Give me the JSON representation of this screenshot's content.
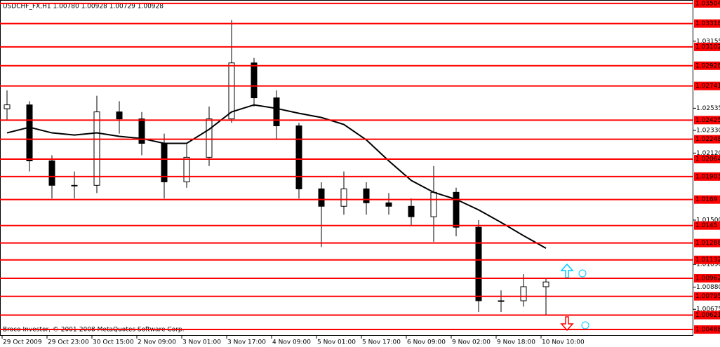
{
  "chart_data": {
    "type": "candlestick",
    "title": "USDCHF_FX,H1  1.00780 1.00928 1.00729 1.00928",
    "annotation": "Broco Investor, © 2001-2008 MetaQuotes Software Corp.",
    "x_labels": [
      "29 Oct 2009",
      "29 Oct 23:00",
      "30 Oct 15:00",
      "2 Nov 09:00",
      "3 Nov 01:00",
      "3 Nov 17:00",
      "4 Nov 09:00",
      "5 Nov 01:00",
      "5 Nov 17:00",
      "6 Nov 09:00",
      "9 Nov 02:00",
      "9 Nov 18:00",
      "10 Nov 10:00"
    ],
    "open": [
      1.0253,
      1.02566,
      1.02048,
      1.01822,
      1.01822,
      1.02501,
      1.02436,
      1.0221,
      1.01854,
      1.02081,
      1.02436,
      1.02954,
      1.02631,
      1.02372,
      1.01789,
      1.01628,
      1.01789,
      1.0166,
      1.01628,
      1.01531,
      1.01757,
      1.01434,
      1.00754,
      1.00754,
      1.00884
    ],
    "high": [
      1.027,
      1.026,
      1.021,
      1.0195,
      1.0265,
      1.026,
      1.025,
      1.023,
      1.022,
      1.0255,
      1.0335,
      1.03,
      1.027,
      1.024,
      1.0185,
      1.0195,
      1.0185,
      1.0175,
      1.017,
      1.02,
      1.018,
      1.015,
      1.0085,
      1.01,
      1.0096
    ],
    "low": [
      1.0242,
      1.0195,
      1.017,
      1.017,
      1.0175,
      1.023,
      1.021,
      1.017,
      1.018,
      1.02,
      1.024,
      1.0255,
      1.0225,
      1.017,
      1.0125,
      1.0155,
      1.0155,
      1.0155,
      1.0145,
      1.013,
      1.0135,
      1.0065,
      1.0065,
      1.007,
      1.0062
    ],
    "close": [
      1.02566,
      1.02048,
      1.01822,
      1.01822,
      1.02501,
      1.02436,
      1.0221,
      1.01854,
      1.02081,
      1.02436,
      1.02954,
      1.02631,
      1.02372,
      1.01789,
      1.01628,
      1.01789,
      1.0166,
      1.01628,
      1.01531,
      1.01757,
      1.01434,
      1.00754,
      1.00754,
      1.00884,
      1.00928
    ],
    "moving_average": [
      1.02307,
      1.02359,
      1.02307,
      1.02287,
      1.02307,
      1.02275,
      1.02255,
      1.0221,
      1.0221,
      1.02339,
      1.02501,
      1.02566,
      1.02533,
      1.02488,
      1.02449,
      1.02385,
      1.02242,
      1.02048,
      1.01867,
      1.01757,
      1.01692,
      1.01595,
      1.01479,
      1.01356,
      1.0124
    ],
    "levels": [
      1.03504,
      1.03318,
      1.03102,
      1.02928,
      1.02741,
      1.02425,
      1.02248,
      1.02064,
      1.01903,
      1.0169,
      1.0145,
      1.01288,
      1.01132,
      1.00962,
      1.00795,
      1.00621,
      1.00488
    ],
    "level_color": "#ff0000",
    "ylim": [
      1.0043,
      1.03536
    ],
    "yticks": [
      1.03155,
      1.02535,
      {
        "value": 1.0233,
        "label": "1.02330"
      },
      {
        "value": 1.0212,
        "label": "1.02120"
      },
      {
        "value": 1.015,
        "label": "1.01500"
      },
      {
        "value": 1.0109,
        "label": "1.01090"
      },
      {
        "value": 1.0088,
        "label": "1.00880"
      },
      1.00675
    ]
  }
}
